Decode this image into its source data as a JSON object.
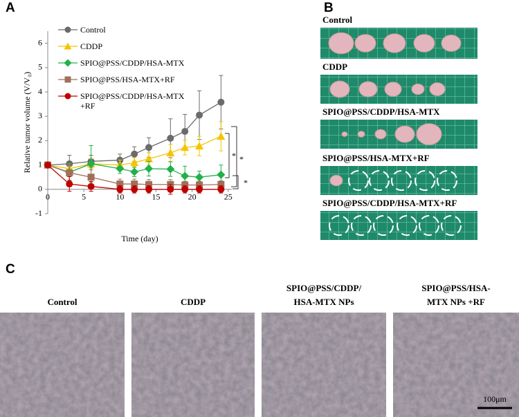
{
  "panel_labels": [
    "A",
    "B",
    "C"
  ],
  "chart_data": {
    "type": "line",
    "x_label": "Time (day)",
    "y_label": "Relative tumor volume (V/V₀)",
    "x": [
      0,
      3,
      6,
      10,
      12,
      14,
      17,
      19,
      21,
      24
    ],
    "xlim": [
      0,
      25.5
    ],
    "ylim": [
      -1,
      6.5
    ],
    "xticks": [
      0,
      5,
      10,
      15,
      20,
      25
    ],
    "yticks": [
      -1,
      0,
      1,
      2,
      3,
      4,
      5,
      6
    ],
    "series": [
      {
        "name": "Control",
        "color": "#6b6b6b",
        "marker": "circle",
        "values": [
          1,
          1.05,
          1.15,
          1.2,
          1.45,
          1.72,
          2.1,
          2.38,
          3.05,
          3.58
        ],
        "errors": [
          0.1,
          0.35,
          0.25,
          0.25,
          0.3,
          0.4,
          0.8,
          0.7,
          1.0,
          1.1
        ]
      },
      {
        "name": "CDDP",
        "color": "#f5c400",
        "marker": "triangle",
        "values": [
          1,
          0.85,
          1.05,
          1.0,
          1.1,
          1.25,
          1.5,
          1.72,
          1.78,
          2.18
        ],
        "errors": [
          0.1,
          0.2,
          0.2,
          0.2,
          0.2,
          0.25,
          0.35,
          0.3,
          0.4,
          0.6
        ]
      },
      {
        "name": "SPIO@PSS/CDDP/HSA-MTX",
        "color": "#22b04a",
        "marker": "diamond",
        "values": [
          1,
          0.7,
          1.05,
          0.85,
          0.72,
          0.85,
          0.83,
          0.55,
          0.5,
          0.6
        ],
        "errors": [
          0.1,
          0.35,
          0.75,
          0.2,
          0.2,
          0.3,
          0.3,
          0.4,
          0.25,
          0.4
        ]
      },
      {
        "name": "SPIO@PSS/HSA-MTX+RF",
        "color": "#a0705a",
        "marker": "square",
        "values": [
          1,
          0.68,
          0.5,
          0.22,
          0.22,
          0.2,
          0.2,
          0.18,
          0.18,
          0.2
        ],
        "errors": [
          0.1,
          0.3,
          0.3,
          0.2,
          0.2,
          0.2,
          0.2,
          0.15,
          0.15,
          0.15
        ]
      },
      {
        "name": "SPIO@PSS/CDDP/HSA-MTX +RF",
        "color": "#c00000",
        "marker": "circle",
        "values": [
          1,
          0.22,
          0.12,
          0,
          0,
          0,
          0,
          0,
          0,
          0
        ],
        "errors": [
          0.1,
          0.3,
          0.2,
          0.15,
          0.15,
          0.15,
          0.2,
          0.15,
          0.15,
          0.15
        ]
      }
    ],
    "annotations": [
      "*",
      "*",
      "*"
    ]
  },
  "photos": {
    "labels": [
      "Control",
      "CDDP",
      "SPIO@PSS/CDDP/HSA-MTX",
      "SPIO@PSS/HSA-MTX+RF",
      "SPIO@PSS/CDDP/HSA-MTX+RF"
    ]
  },
  "micrographs": {
    "labels": [
      [
        "Control"
      ],
      [
        "CDDP"
      ],
      [
        "SPIO@PSS/CDDP/",
        "HSA-MTX NPs"
      ],
      [
        "SPIO@PSS/HSA-",
        "MTX NPs +RF"
      ]
    ],
    "scale_bar": "100μm"
  }
}
